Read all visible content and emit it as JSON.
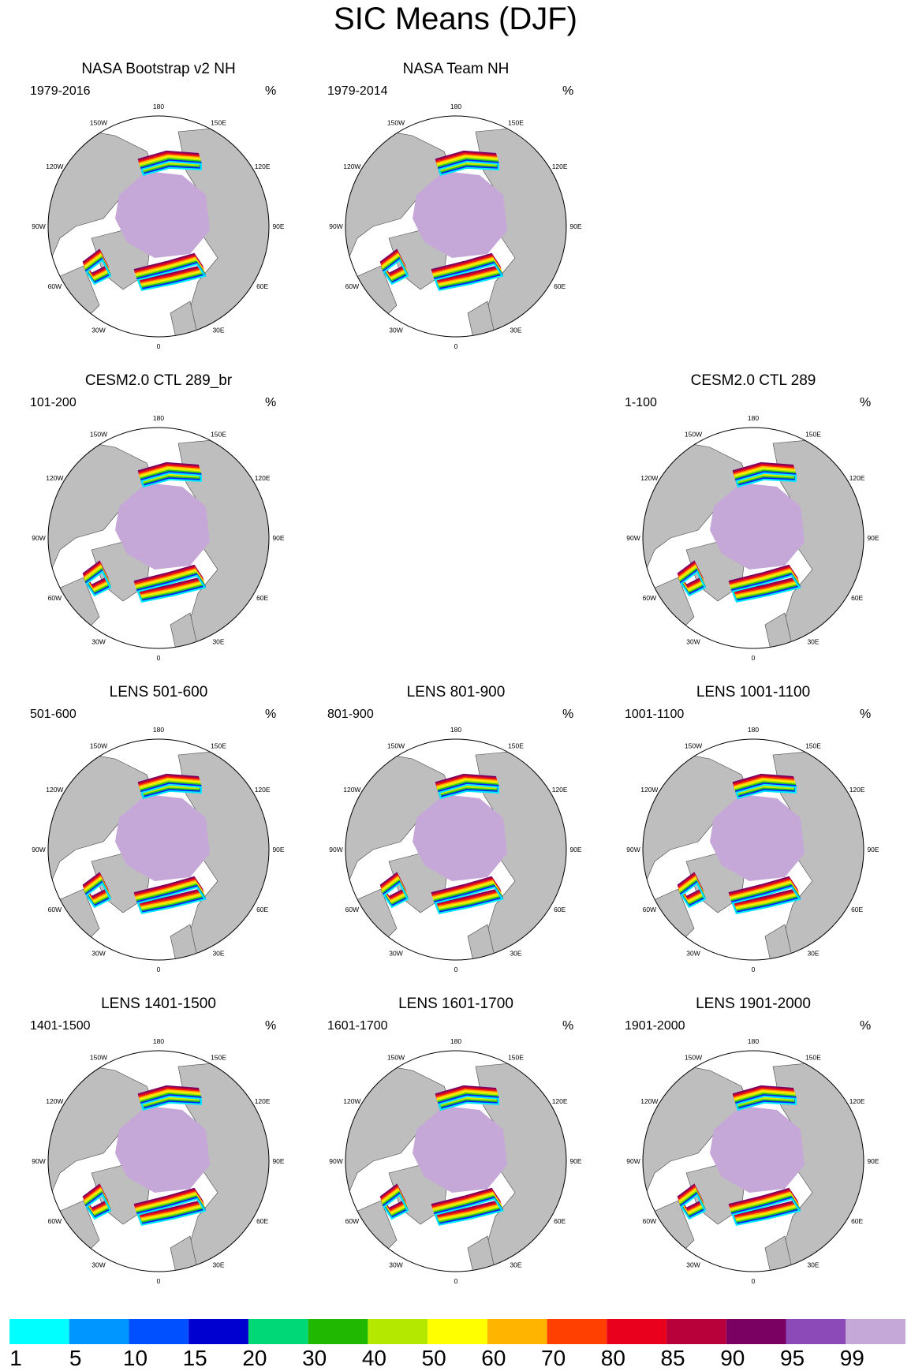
{
  "title": "SIC Means (DJF)",
  "map_labels": {
    "lon": [
      "180",
      "150E",
      "120E",
      "90E",
      "60E",
      "30E",
      "0",
      "30W",
      "60W",
      "90W",
      "120W",
      "150W"
    ]
  },
  "colors": {
    "land": "#bebebe",
    "ocean": "#ffffff",
    "ice_core": "#c5a8d8",
    "ice_edge": [
      "#7a0062",
      "#c4002c",
      "#ff2010",
      "#ffb000",
      "#ffef00",
      "#b8e800",
      "#20c020",
      "#0020ff",
      "#00e8ff"
    ]
  },
  "panels": [
    {
      "title": "NASA Bootstrap v2 NH",
      "period": "1979-2016",
      "unit": "%"
    },
    {
      "title": "NASA Team NH",
      "period": "1979-2014",
      "unit": "%"
    },
    {
      "title": "CESM2.0 CTL 289_br",
      "period": "101-200",
      "unit": "%"
    },
    {
      "title": "CESM2.0 CTL 289",
      "period": "1-100",
      "unit": "%"
    },
    {
      "title": "LENS 501-600",
      "period": "501-600",
      "unit": "%"
    },
    {
      "title": "LENS 801-900",
      "period": "801-900",
      "unit": "%"
    },
    {
      "title": "LENS 1001-1100",
      "period": "1001-1100",
      "unit": "%"
    },
    {
      "title": "LENS 1401-1500",
      "period": "1401-1500",
      "unit": "%"
    },
    {
      "title": "LENS 1601-1700",
      "period": "1601-1700",
      "unit": "%"
    },
    {
      "title": "LENS 1901-2000",
      "period": "1901-2000",
      "unit": "%"
    }
  ],
  "colorbar": {
    "labels": [
      "1",
      "5",
      "10",
      "15",
      "20",
      "30",
      "40",
      "50",
      "60",
      "70",
      "80",
      "85",
      "90",
      "95",
      "99"
    ],
    "colors": [
      "#00ffff",
      "#0096ff",
      "#0050ff",
      "#0000d0",
      "#00d878",
      "#20b800",
      "#b4e800",
      "#ffff00",
      "#ffb400",
      "#ff4000",
      "#e8001c",
      "#b8003a",
      "#7a0062",
      "#8c4ab8",
      "#c5a8d8"
    ]
  }
}
